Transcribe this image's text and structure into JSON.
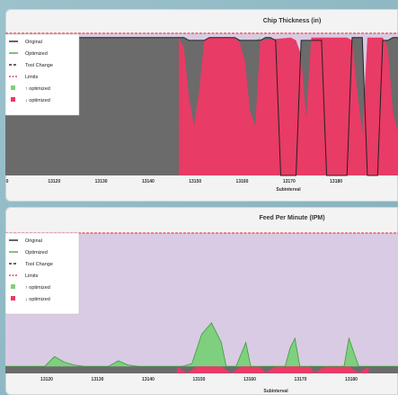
{
  "chart_data": [
    {
      "type": "area",
      "title": "Chip Thickness (in)",
      "xlabel": "Subinterval",
      "ylabel": "",
      "xlim": [
        13110,
        13187
      ],
      "ylim": [
        0,
        1
      ],
      "grid": false,
      "legend_placement": "top-left",
      "x_ticks": [
        "0",
        "13120",
        "13130",
        "13140",
        "13150",
        "13160",
        "13170",
        "13180"
      ],
      "colors": {
        "plot_bg": "#d9cbe3",
        "original": "#6b6b6b",
        "optimized": "#7ed07e",
        "decreased": "#e83b66",
        "limits": "#e0485a"
      },
      "legend": [
        "Original",
        "Optimized",
        "Tool Change",
        "Limits",
        "↑ optimized",
        "↓ optimized"
      ],
      "limit_value": 1.0,
      "series": [
        {
          "name": "Original",
          "x": [
            13110,
            13145,
            13146,
            13149,
            13150,
            13155,
            13156,
            13160,
            13161,
            13162,
            13163,
            13164,
            13165,
            13166,
            13167,
            13168,
            13169,
            13170,
            13171,
            13172,
            13173,
            13174,
            13176,
            13177,
            13178,
            13179,
            13180,
            13181,
            13182,
            13183,
            13184,
            13185,
            13186,
            13187
          ],
          "values": [
            0.97,
            0.97,
            0.95,
            0.95,
            0.97,
            0.97,
            0.95,
            0.95,
            0.97,
            0.97,
            0.95,
            0.0,
            0.0,
            0.0,
            0.0,
            0.95,
            0.95,
            0.95,
            0.95,
            0.95,
            0.0,
            0.0,
            0.0,
            0.0,
            0.97,
            0.97,
            0.97,
            0.0,
            0.0,
            0.0,
            0.95,
            0.95,
            0.97,
            0.97
          ]
        },
        {
          "name": "Optimized",
          "x": [
            13110,
            13119,
            13120,
            13121,
            13122,
            13123,
            13124,
            13125,
            13126,
            13127,
            13128,
            13129,
            13130,
            13131,
            13132,
            13133,
            13134,
            13135,
            13136,
            13137,
            13138,
            13139,
            13140,
            13141,
            13142,
            13143,
            13144,
            13145,
            13146,
            13147,
            13148,
            13149,
            13150,
            13151,
            13152,
            13153,
            13154,
            13155,
            13156,
            13157,
            13158,
            13159,
            13160,
            13161,
            13162,
            13163,
            13164,
            13165,
            13166,
            13167,
            13168,
            13169,
            13170,
            13171,
            13172,
            13173,
            13174,
            13175,
            13176,
            13177,
            13178,
            13179,
            13180,
            13181,
            13182,
            13183,
            13184,
            13185,
            13186,
            13187
          ],
          "values": [
            0.97,
            0.97,
            0.96,
            0.85,
            0.85,
            0.84,
            0.9,
            0.92,
            0.93,
            0.92,
            0.55,
            0.45,
            0.45,
            0.55,
            0.6,
            0.75,
            0.85,
            0.9,
            0.92,
            0.95,
            0.96,
            0.97,
            0.97,
            0.97,
            0.97,
            0.97,
            0.97,
            0.97,
            0.9,
            0.6,
            0.85,
            0.95,
            0.97,
            0.96,
            0.65,
            0.35,
            0.2,
            0.25,
            0.55,
            0.8,
            0.9,
            0.95,
            0.97,
            0.6,
            0.3,
            0.15,
            0.0,
            0.0,
            0.0,
            0.0,
            0.8,
            0.9,
            0.3,
            0.05,
            0.85,
            0.0,
            0.0,
            0.0,
            0.0,
            0.0,
            0.95,
            0.5,
            0.05,
            0.0,
            0.0,
            0.0,
            0.0,
            0.9,
            0.5,
            0.1
          ]
        },
        {
          "name": "↓ optimized",
          "x": [
            13144,
            13145,
            13146,
            13147,
            13148,
            13149,
            13150,
            13155,
            13156,
            13157,
            13158,
            13159,
            13160,
            13166,
            13167,
            13168,
            13169,
            13170,
            13177,
            13178,
            13179,
            13180,
            13181,
            13184,
            13185,
            13186,
            13187
          ],
          "values": [
            0.97,
            0.9,
            0.55,
            0.35,
            0.6,
            0.95,
            0.97,
            0.97,
            0.93,
            0.8,
            0.45,
            0.35,
            0.95,
            0.97,
            0.95,
            0.85,
            0.4,
            0.97,
            0.97,
            0.95,
            0.6,
            0.3,
            0.97,
            0.97,
            0.9,
            0.45,
            0.3
          ]
        }
      ]
    },
    {
      "type": "area",
      "title": "Feed Per Minute (IPM)",
      "xlabel": "Subinterval",
      "ylabel": "",
      "xlim": [
        13110,
        13190
      ],
      "ylim": [
        0,
        1
      ],
      "grid": false,
      "legend_placement": "top-left",
      "x_ticks": [
        "13120",
        "13130",
        "13140",
        "13150",
        "13160",
        "13170",
        "13180"
      ],
      "colors": {
        "plot_bg": "#d9cbe3",
        "original": "#6b6b6b",
        "optimized": "#7ed07e",
        "decreased": "#e83b66",
        "limits": "#e0485a"
      },
      "legend": [
        "Original",
        "Optimized",
        "Tool Change",
        "Limits",
        "↑ optimized",
        "↓ optimized"
      ],
      "limit_value": 1.0,
      "series": [
        {
          "name": "Original",
          "x": [
            13110,
            13190
          ],
          "values": [
            0.05,
            0.05
          ]
        },
        {
          "name": "Optimized",
          "x": [
            13110,
            13118,
            13120,
            13122,
            13124,
            13126,
            13131,
            13133,
            13135,
            13137,
            13146,
            13148,
            13150,
            13152,
            13154,
            13155,
            13157,
            13159,
            13160,
            13161,
            13162,
            13163,
            13164,
            13166,
            13167,
            13168,
            13169,
            13170,
            13171,
            13172,
            13176,
            13177,
            13178,
            13179,
            13180,
            13182,
            13190
          ],
          "values": [
            0.05,
            0.05,
            0.12,
            0.08,
            0.06,
            0.05,
            0.05,
            0.09,
            0.06,
            0.05,
            0.05,
            0.07,
            0.28,
            0.36,
            0.22,
            0.05,
            0.05,
            0.22,
            0.05,
            0.05,
            0.05,
            0.05,
            0.05,
            0.05,
            0.05,
            0.18,
            0.25,
            0.05,
            0.05,
            0.05,
            0.05,
            0.05,
            0.05,
            0.05,
            0.25,
            0.05,
            0.05
          ]
        },
        {
          "name": "↓ optimized",
          "x": [
            13145,
            13147,
            13149,
            13154,
            13156,
            13158,
            13162,
            13163,
            13165,
            13172,
            13173,
            13175,
            13180,
            13182,
            13184
          ],
          "values": [
            0.05,
            0.0,
            0.05,
            0.05,
            0.0,
            0.05,
            0.05,
            0.0,
            0.05,
            0.05,
            0.0,
            0.05,
            0.05,
            0.0,
            0.05
          ]
        }
      ]
    }
  ]
}
